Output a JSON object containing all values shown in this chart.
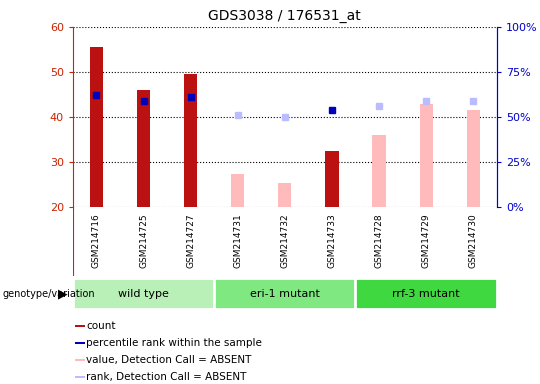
{
  "title": "GDS3038 / 176531_at",
  "samples": [
    "GSM214716",
    "GSM214725",
    "GSM214727",
    "GSM214731",
    "GSM214732",
    "GSM214733",
    "GSM214728",
    "GSM214729",
    "GSM214730"
  ],
  "groups": [
    {
      "label": "wild type",
      "indices": [
        0,
        1,
        2
      ],
      "color": "#b8f0b8"
    },
    {
      "label": "eri-1 mutant",
      "indices": [
        3,
        4,
        5
      ],
      "color": "#80e880"
    },
    {
      "label": "rrf-3 mutant",
      "indices": [
        6,
        7,
        8
      ],
      "color": "#40d840"
    }
  ],
  "count_values": [
    55.5,
    46.0,
    49.5,
    null,
    null,
    32.5,
    null,
    null,
    null
  ],
  "rank_values": [
    45.0,
    43.5,
    44.5,
    null,
    null,
    41.5,
    null,
    null,
    null
  ],
  "absent_value_values": [
    null,
    null,
    null,
    27.5,
    25.5,
    null,
    36.0,
    43.0,
    41.5
  ],
  "absent_rank_values": [
    null,
    null,
    null,
    40.5,
    40.0,
    null,
    42.5,
    43.5,
    43.5
  ],
  "ylim": [
    20,
    60
  ],
  "y2lim": [
    0,
    100
  ],
  "yticks": [
    20,
    30,
    40,
    50,
    60
  ],
  "y2ticks": [
    0,
    25,
    50,
    75,
    100
  ],
  "y2ticklabels": [
    "0%",
    "25%",
    "50%",
    "75%",
    "100%"
  ],
  "count_bar_width": 0.28,
  "absent_bar_width": 0.28,
  "count_color": "#bb1111",
  "rank_color": "#0000bb",
  "absent_value_color": "#ffbbbb",
  "absent_rank_color": "#bbbbff",
  "grid_color": "#000000",
  "left_label_color": "#cc2200",
  "right_label_color": "#0000cc",
  "legend_items": [
    {
      "label": "count",
      "color": "#bb1111"
    },
    {
      "label": "percentile rank within the sample",
      "color": "#0000bb"
    },
    {
      "label": "value, Detection Call = ABSENT",
      "color": "#ffbbbb"
    },
    {
      "label": "rank, Detection Call = ABSENT",
      "color": "#bbbbff"
    }
  ]
}
